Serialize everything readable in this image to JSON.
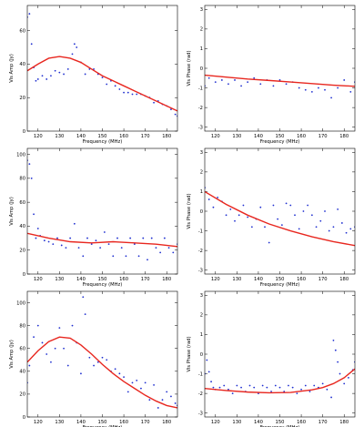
{
  "chart_data": [
    {
      "type": "scatter",
      "xlabel": "Frequency (MHz)",
      "ylabel": "Vis Amp (Jy)",
      "xlim": [
        115,
        185
      ],
      "ylim": [
        0,
        75
      ],
      "xticks": [
        120,
        130,
        140,
        150,
        160,
        170,
        180
      ],
      "yticks": [
        0,
        20,
        40,
        60
      ],
      "series": [
        {
          "kind": "scatter",
          "color": "#1f2fd0",
          "x": [
            115,
            116,
            117,
            118,
            119,
            120,
            122,
            124,
            126,
            128,
            130,
            132,
            134,
            136,
            137,
            138,
            140,
            142,
            144,
            146,
            148,
            150,
            152,
            154,
            156,
            158,
            160,
            162,
            164,
            166,
            168,
            170,
            172,
            174,
            176,
            178,
            180,
            182,
            184,
            185
          ],
          "y": [
            68,
            70,
            52,
            38,
            30,
            31,
            33,
            31,
            33,
            36,
            35,
            34,
            37,
            46,
            52,
            50,
            41,
            34,
            37,
            37,
            34,
            32,
            28,
            30,
            27,
            25,
            23,
            23,
            22,
            22,
            22,
            21,
            20,
            17,
            18,
            16,
            15,
            13,
            10,
            9
          ]
        },
        {
          "kind": "line",
          "color": "#e8271f",
          "x": [
            115,
            120,
            125,
            130,
            135,
            140,
            145,
            150,
            155,
            160,
            165,
            170,
            175,
            180,
            185
          ],
          "y": [
            36,
            40,
            43.5,
            44.5,
            43.5,
            41,
            37,
            33,
            30,
            27,
            24,
            21,
            18,
            15,
            12
          ]
        }
      ]
    },
    {
      "type": "scatter",
      "xlabel": "Frequency (MHz)",
      "ylabel": "Vis Phase (rad)",
      "xlim": [
        115,
        185
      ],
      "ylim": [
        -3.2,
        3.2
      ],
      "xticks": [
        120,
        130,
        140,
        150,
        160,
        170,
        180
      ],
      "yticks": [
        -3,
        -2,
        -1,
        0,
        1,
        2,
        3
      ],
      "series": [
        {
          "kind": "scatter",
          "color": "#1f2fd0",
          "x": [
            115,
            117,
            120,
            123,
            126,
            129,
            132,
            135,
            138,
            141,
            144,
            147,
            150,
            153,
            156,
            159,
            162,
            165,
            168,
            171,
            174,
            177,
            180,
            183,
            185
          ],
          "y": [
            -0.9,
            -0.5,
            -0.7,
            -0.6,
            -0.8,
            -0.6,
            -0.9,
            -0.7,
            -0.5,
            -0.8,
            -0.6,
            -0.9,
            -0.6,
            -0.8,
            -0.7,
            -1.0,
            -1.1,
            -1.2,
            -1.0,
            -1.1,
            -1.5,
            -1.0,
            -0.6,
            -1.2,
            -0.7
          ]
        },
        {
          "kind": "line",
          "color": "#e8271f",
          "x": [
            115,
            125,
            135,
            145,
            155,
            165,
            175,
            185
          ],
          "y": [
            -0.35,
            -0.45,
            -0.55,
            -0.62,
            -0.7,
            -0.78,
            -0.86,
            -0.92
          ]
        }
      ]
    },
    {
      "type": "scatter",
      "xlabel": "Frequency (MHz)",
      "ylabel": "Vis Amp (Jy)",
      "xlim": [
        115,
        185
      ],
      "ylim": [
        0,
        105
      ],
      "xticks": [
        120,
        130,
        140,
        150,
        160,
        170,
        180
      ],
      "yticks": [
        0,
        20,
        40,
        60,
        80,
        100
      ],
      "series": [
        {
          "kind": "scatter",
          "color": "#1f2fd0",
          "x": [
            115,
            116,
            117,
            118,
            119,
            120,
            121,
            123,
            125,
            127,
            129,
            131,
            133,
            135,
            137,
            139,
            141,
            143,
            145,
            147,
            149,
            151,
            153,
            155,
            157,
            159,
            161,
            163,
            165,
            167,
            169,
            171,
            173,
            175,
            177,
            179,
            181,
            183,
            185
          ],
          "y": [
            95,
            92,
            80,
            50,
            30,
            38,
            32,
            28,
            27,
            25,
            30,
            24,
            22,
            30,
            42,
            22,
            15,
            30,
            25,
            28,
            22,
            35,
            25,
            15,
            30,
            22,
            15,
            30,
            25,
            15,
            30,
            12,
            30,
            22,
            18,
            30,
            22,
            18,
            25
          ]
        },
        {
          "kind": "line",
          "color": "#e8271f",
          "x": [
            115,
            125,
            135,
            145,
            155,
            165,
            175,
            185
          ],
          "y": [
            34,
            30,
            27,
            26,
            27,
            26,
            25,
            23
          ]
        }
      ]
    },
    {
      "type": "scatter",
      "xlabel": "Frequency (MHz)",
      "ylabel": "Vis Phase (rad)",
      "xlim": [
        115,
        185
      ],
      "ylim": [
        -3.2,
        3.2
      ],
      "xticks": [
        120,
        130,
        140,
        150,
        160,
        170,
        180
      ],
      "yticks": [
        -3,
        -2,
        -1,
        0,
        1,
        2,
        3
      ],
      "series": [
        {
          "kind": "scatter",
          "color": "#1f2fd0",
          "x": [
            115,
            117,
            119,
            121,
            123,
            125,
            127,
            129,
            131,
            133,
            135,
            137,
            139,
            141,
            143,
            145,
            147,
            149,
            151,
            153,
            155,
            157,
            159,
            161,
            163,
            165,
            167,
            169,
            171,
            173,
            175,
            177,
            179,
            181,
            183,
            185
          ],
          "y": [
            1.2,
            0.6,
            0.2,
            0.7,
            0.5,
            -0.2,
            0.1,
            -0.5,
            -0.2,
            0.3,
            -0.3,
            -0.8,
            -0.4,
            0.2,
            -0.8,
            -1.6,
            0.3,
            -0.4,
            -0.7,
            0.4,
            0.3,
            -0.2,
            -0.9,
            0.0,
            0.3,
            -0.2,
            -0.8,
            -0.5,
            0.0,
            -1.0,
            -0.8,
            0.1,
            -0.6,
            -1.1,
            -0.9,
            -0.8
          ]
        },
        {
          "kind": "line",
          "color": "#e8271f",
          "x": [
            115,
            125,
            135,
            145,
            155,
            165,
            175,
            185
          ],
          "y": [
            1.0,
            0.35,
            -0.2,
            -0.65,
            -1.0,
            -1.3,
            -1.55,
            -1.75
          ]
        }
      ]
    },
    {
      "type": "scatter",
      "xlabel": "Frequency (MHz)",
      "ylabel": "Vis Amp (Jy)",
      "xlim": [
        115,
        185
      ],
      "ylim": [
        0,
        110
      ],
      "xticks": [
        120,
        130,
        140,
        150,
        160,
        170,
        180
      ],
      "yticks": [
        0,
        20,
        40,
        60,
        80,
        100
      ],
      "series": [
        {
          "kind": "scatter",
          "color": "#1f2fd0",
          "x": [
            115,
            116,
            118,
            120,
            122,
            124,
            126,
            128,
            130,
            132,
            134,
            136,
            138,
            140,
            141,
            142,
            144,
            146,
            148,
            150,
            152,
            154,
            156,
            158,
            160,
            162,
            164,
            166,
            168,
            170,
            172,
            174,
            176,
            178,
            180,
            182,
            184,
            185
          ],
          "y": [
            30,
            45,
            70,
            80,
            65,
            55,
            48,
            60,
            78,
            60,
            45,
            80,
            65,
            38,
            105,
            90,
            52,
            45,
            48,
            52,
            50,
            40,
            42,
            38,
            35,
            22,
            30,
            32,
            25,
            30,
            15,
            28,
            8,
            15,
            22,
            18,
            12,
            10
          ]
        },
        {
          "kind": "line",
          "color": "#e8271f",
          "x": [
            115,
            120,
            125,
            130,
            135,
            140,
            145,
            150,
            155,
            160,
            165,
            170,
            175,
            180,
            185
          ],
          "y": [
            48,
            58,
            66,
            70,
            69,
            63,
            55,
            46,
            38,
            31,
            25,
            19,
            14,
            10,
            8
          ]
        }
      ]
    },
    {
      "type": "scatter",
      "xlabel": "Frequency (MHz)",
      "ylabel": "Vis Phase (rad)",
      "xlim": [
        115,
        185
      ],
      "ylim": [
        -3.2,
        3.2
      ],
      "xticks": [
        120,
        130,
        140,
        150,
        160,
        170,
        180
      ],
      "yticks": [
        -3,
        -2,
        -1,
        0,
        1,
        2,
        3
      ],
      "series": [
        {
          "kind": "scatter",
          "color": "#1f2fd0",
          "x": [
            115,
            116,
            117,
            118,
            119,
            120,
            122,
            124,
            126,
            128,
            130,
            132,
            134,
            136,
            138,
            140,
            142,
            144,
            146,
            148,
            150,
            152,
            154,
            156,
            158,
            160,
            162,
            164,
            166,
            168,
            170,
            172,
            174,
            175,
            176,
            177,
            178,
            180,
            182,
            184,
            185
          ],
          "y": [
            -1.0,
            -0.3,
            -0.9,
            -1.4,
            -1.7,
            -1.8,
            -1.7,
            -1.6,
            -1.8,
            -2.0,
            -1.6,
            -1.7,
            -1.9,
            -1.6,
            -1.7,
            -2.0,
            -1.6,
            -1.7,
            -1.9,
            -1.6,
            -1.7,
            -1.9,
            -1.6,
            -1.7,
            -2.0,
            -1.8,
            -1.6,
            -1.9,
            -1.6,
            -1.7,
            -1.5,
            -1.8,
            -2.2,
            0.7,
            0.2,
            -0.4,
            -1.0,
            -1.5,
            -1.2,
            -0.8,
            -0.4
          ]
        },
        {
          "kind": "line",
          "color": "#e8271f",
          "x": [
            115,
            125,
            135,
            145,
            155,
            165,
            170,
            175,
            180,
            185
          ],
          "y": [
            -1.75,
            -1.85,
            -1.93,
            -1.97,
            -1.95,
            -1.82,
            -1.7,
            -1.5,
            -1.2,
            -0.75
          ]
        }
      ]
    }
  ]
}
